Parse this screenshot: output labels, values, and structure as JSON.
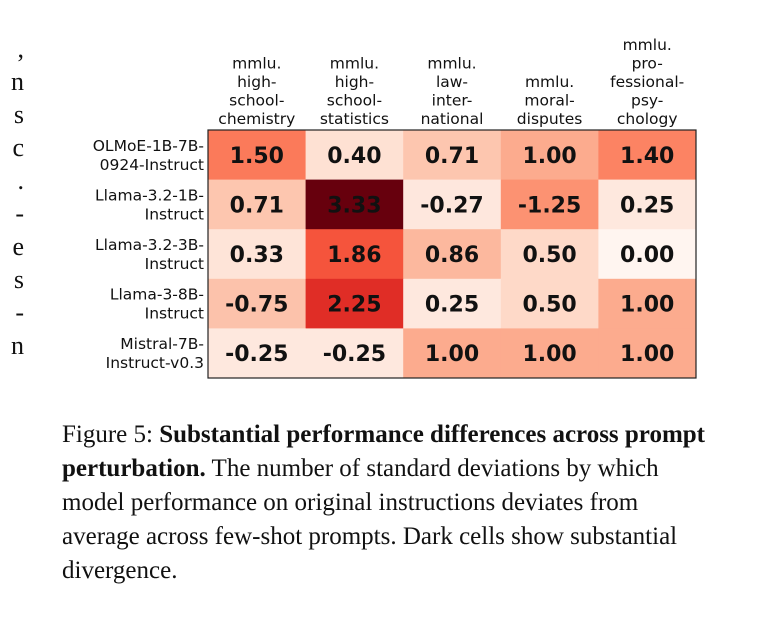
{
  "margin_fragments": [
    ",",
    "n",
    "s",
    "c",
    ".",
    "-",
    "e",
    "s",
    "-",
    "n"
  ],
  "chart_data": {
    "type": "heatmap",
    "columns": [
      [
        "mmlu.",
        "high-",
        "school-",
        "chemistry"
      ],
      [
        "mmlu.",
        "high-",
        "school-",
        "statistics"
      ],
      [
        "mmlu.",
        "law-",
        "inter-",
        "national"
      ],
      [
        "mmlu.",
        "moral-",
        "disputes"
      ],
      [
        "mmlu.",
        "pro-",
        "fessional-",
        "psy-",
        "chology"
      ]
    ],
    "rows": [
      [
        "OLMoE-1B-7B-",
        "0924-Instruct"
      ],
      [
        "Llama-3.2-1B-",
        "Instruct"
      ],
      [
        "Llama-3.2-3B-",
        "Instruct"
      ],
      [
        "Llama-3-8B-",
        "Instruct"
      ],
      [
        "Mistral-7B-",
        "Instruct-v0.3"
      ]
    ],
    "values": [
      [
        1.5,
        0.4,
        0.71,
        1.0,
        1.4
      ],
      [
        0.71,
        3.33,
        -0.27,
        -1.25,
        0.25
      ],
      [
        0.33,
        1.86,
        0.86,
        0.5,
        0.0
      ],
      [
        -0.75,
        2.25,
        0.25,
        0.5,
        1.0
      ],
      [
        -0.25,
        -0.25,
        1.0,
        1.0,
        1.0
      ]
    ],
    "labels": [
      [
        "1.50",
        "0.40",
        "0.71",
        "1.00",
        "1.40"
      ],
      [
        "0.71",
        "3.33",
        "-0.27",
        "-1.25",
        "0.25"
      ],
      [
        "0.33",
        "1.86",
        "0.86",
        "0.50",
        "0.00"
      ],
      [
        "-0.75",
        "2.25",
        "0.25",
        "0.50",
        "1.00"
      ],
      [
        "-0.25",
        "-0.25",
        "1.00",
        "1.00",
        "1.00"
      ]
    ],
    "colormap": "Reds",
    "color_scale": "absolute value",
    "color_range": [
      0,
      3.33
    ]
  },
  "caption": {
    "prefix": "Figure 5: ",
    "bold": "Substantial performance differences across prompt perturbation.",
    "text": " The number of standard deviations by which model performance on original instructions deviates from average across few-shot prompts. Dark cells show substantial divergence."
  }
}
